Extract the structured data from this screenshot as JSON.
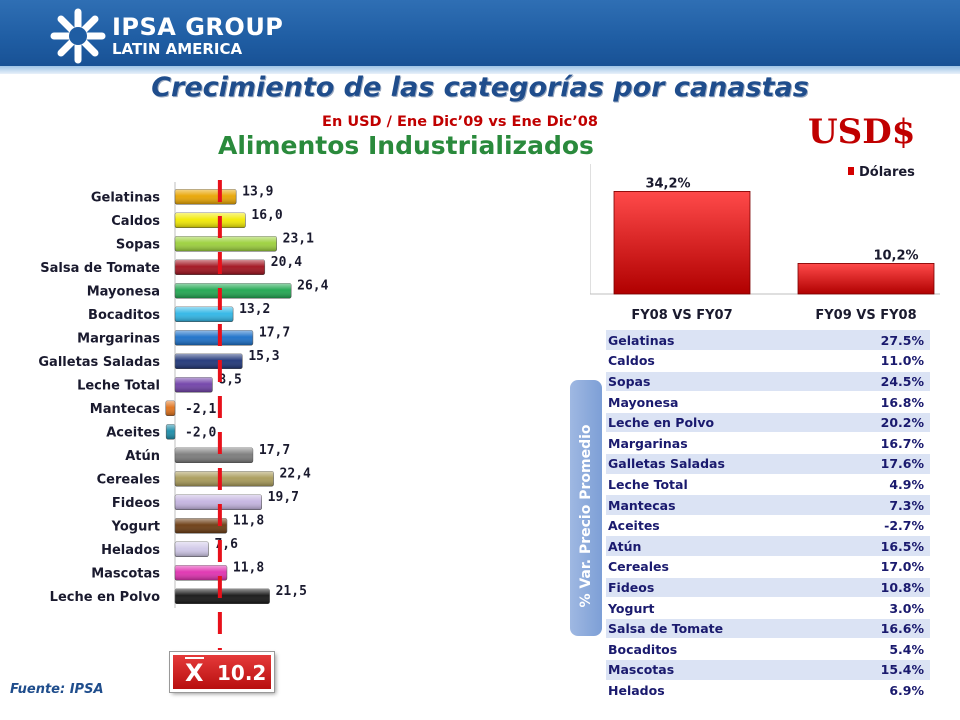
{
  "header": {
    "logo_line1": "IPSA GROUP",
    "logo_line2": "LATIN AMERICA",
    "title": "Crecimiento de las categorías por canastas",
    "subtitle": "En USD / Ene Dic’09 vs Ene Dic’08",
    "heading": "Alimentos Industrializados",
    "currency_badge": "USD$"
  },
  "chart_data": [
    {
      "type": "bar",
      "orientation": "horizontal",
      "categories": [
        "Gelatinas",
        "Caldos",
        "Sopas",
        "Salsa de Tomate",
        "Mayonesa",
        "Bocaditos",
        "Margarinas",
        "Galletas Saladas",
        "Leche Total",
        "Mantecas",
        "Aceites",
        "Atún",
        "Cereales",
        "Fideos",
        "Yogurt",
        "Helados",
        "Mascotas",
        "Leche en Polvo"
      ],
      "values": [
        13.9,
        16.0,
        23.1,
        20.4,
        26.4,
        13.2,
        17.7,
        15.3,
        8.5,
        -2.1,
        -2.0,
        17.7,
        22.4,
        19.7,
        11.8,
        7.6,
        11.8,
        21.5
      ],
      "value_labels": [
        "13,9",
        "16,0",
        "23,1",
        "20,4",
        "26,4",
        "13,2",
        "17,7",
        "15,3",
        "8,5",
        "-2,1",
        "-2,0",
        "17,7",
        "22,4",
        "19,7",
        "11,8",
        "7,6",
        "11,8",
        "21,5"
      ],
      "colors": [
        "#e8a400",
        "#f2ea00",
        "#9bd03a",
        "#a0101c",
        "#1fa650",
        "#2eb6e6",
        "#1a6fc8",
        "#1d3478",
        "#7040a8",
        "#e07018",
        "#1a8ca8",
        "#7a7a7a",
        "#a89a58",
        "#c4b4e0",
        "#6a3a10",
        "#d0c8e8",
        "#e030b0",
        "#141414"
      ],
      "reference_line": 10.2,
      "reference_label_symbol": "X",
      "reference_label_value": "10.2"
    },
    {
      "type": "bar",
      "categories": [
        "FY08 VS FY07",
        "FY09 VS FY08"
      ],
      "series": [
        {
          "name": "Dólares",
          "values": [
            34.2,
            10.2
          ]
        }
      ],
      "value_labels": [
        "34,2%",
        "10,2%"
      ],
      "color": "#d40000",
      "legend_position": "top-right"
    },
    {
      "type": "table",
      "side_label": "% Var. Precio Promedio",
      "rows": [
        {
          "category": "Gelatinas",
          "value": "27.5%"
        },
        {
          "category": "Caldos",
          "value": "11.0%"
        },
        {
          "category": "Sopas",
          "value": "24.5%"
        },
        {
          "category": "Mayonesa",
          "value": "16.8%"
        },
        {
          "category": "Leche en Polvo",
          "value": "20.2%"
        },
        {
          "category": "Margarinas",
          "value": "16.7%"
        },
        {
          "category": "Galletas Saladas",
          "value": "17.6%"
        },
        {
          "category": "Leche Total",
          "value": "4.9%"
        },
        {
          "category": "Mantecas",
          "value": "7.3%"
        },
        {
          "category": "Aceites",
          "value": "-2.7%"
        },
        {
          "category": "Atún",
          "value": "16.5%"
        },
        {
          "category": "Cereales",
          "value": "17.0%"
        },
        {
          "category": "Fideos",
          "value": "10.8%"
        },
        {
          "category": "Yogurt",
          "value": "3.0%"
        },
        {
          "category": "Salsa de Tomate",
          "value": "16.6%"
        },
        {
          "category": "Bocaditos",
          "value": "5.4%"
        },
        {
          "category": "Mascotas",
          "value": "15.4%"
        },
        {
          "category": "Helados",
          "value": "6.9%"
        }
      ]
    }
  ],
  "footer": {
    "source": "Fuente: IPSA"
  }
}
